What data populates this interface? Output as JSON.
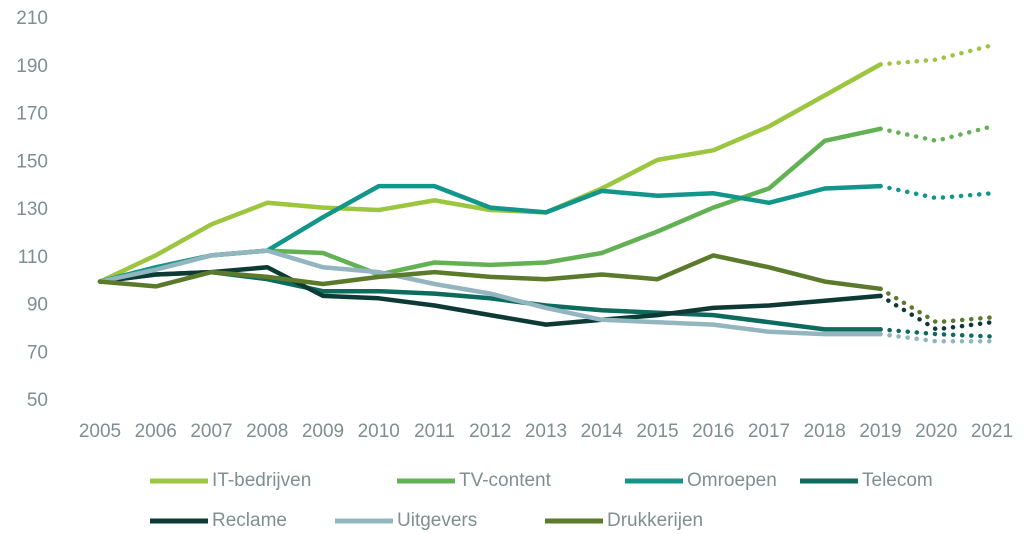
{
  "chart_data": {
    "type": "line",
    "categories": [
      "2005",
      "2006",
      "2007",
      "2008",
      "2009",
      "2010",
      "2011",
      "2012",
      "2013",
      "2014",
      "2015",
      "2016",
      "2017",
      "2018",
      "2019",
      "2020",
      "2021"
    ],
    "forecast_from": "2019",
    "ylim": [
      50,
      210
    ],
    "yticks": [
      50,
      70,
      90,
      110,
      130,
      150,
      170,
      190,
      210
    ],
    "grid": false,
    "legend": "bottom",
    "series": [
      {
        "name": "IT-bedrijven",
        "color": "#9cc63f",
        "values": [
          100,
          111,
          124,
          133,
          131,
          130,
          134,
          130,
          129,
          139,
          151,
          155,
          165,
          178,
          191,
          193,
          199
        ]
      },
      {
        "name": "TV-content",
        "color": "#62b254",
        "values": [
          100,
          106,
          111,
          113,
          112,
          103,
          108,
          107,
          108,
          112,
          121,
          131,
          139,
          159,
          164,
          159,
          165
        ]
      },
      {
        "name": "Omroepen",
        "color": "#12958a",
        "values": [
          100,
          106,
          111,
          113,
          127,
          140,
          140,
          131,
          129,
          138,
          136,
          137,
          133,
          139,
          140,
          135,
          137
        ]
      },
      {
        "name": "Telecom",
        "color": "#0d6b5e",
        "values": [
          100,
          103,
          104,
          101,
          96,
          96,
          95,
          93,
          90,
          88,
          87,
          86,
          83,
          80,
          80,
          78,
          77
        ]
      },
      {
        "name": "Reclame",
        "color": "#0e3a36",
        "values": [
          100,
          103,
          104,
          106,
          94,
          93,
          90,
          86,
          82,
          84,
          86,
          89,
          90,
          92,
          94,
          80,
          83
        ]
      },
      {
        "name": "Uitgevers",
        "color": "#92b5c0",
        "values": [
          100,
          105,
          111,
          113,
          106,
          104,
          99,
          95,
          89,
          84,
          83,
          82,
          79,
          78,
          78,
          75,
          75
        ]
      },
      {
        "name": "Drukkerijen",
        "color": "#5b7a2b",
        "values": [
          100,
          98,
          104,
          102,
          99,
          102,
          104,
          102,
          101,
          103,
          101,
          111,
          106,
          100,
          97,
          83,
          85
        ]
      }
    ]
  }
}
